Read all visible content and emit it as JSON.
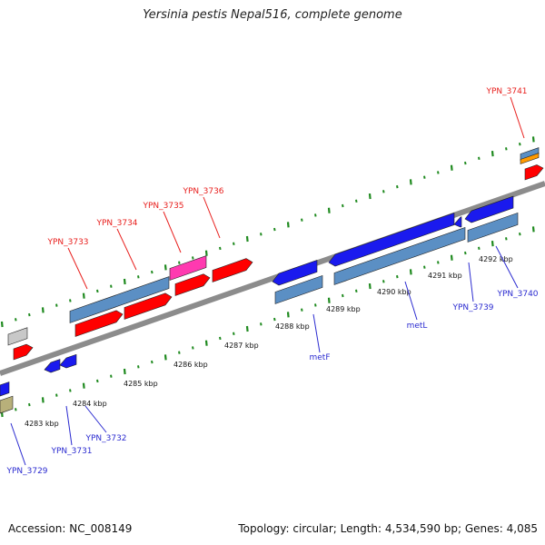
{
  "title": "Yersinia pestis Nepal516, complete genome",
  "footer": {
    "accession": "Accession: NC_008149",
    "topology": "Topology: circular; Length: 4,534,590 bp; Genes: 4,085"
  },
  "colors": {
    "backbone": "#8c8c8c",
    "tick": "#1f8a1f",
    "label_forward": "#e8201e",
    "label_reverse": "#2b2bd0",
    "cds_forward": "#ff0000",
    "cds_reverse": "#1a1aee",
    "gene_outline": "#5b8fc4",
    "ncrna": "#ff3ab0",
    "pseudo": "#c8c8c8",
    "trna": "#ff9a00",
    "other": "#b8b07a"
  },
  "scale": {
    "ticks": [
      "4283 kbp",
      "4284 kbp",
      "4285 kbp",
      "4286 kbp",
      "4287 kbp",
      "4288 kbp",
      "4289 kbp",
      "4290 kbp",
      "4291 kbp",
      "4292 kbp"
    ]
  },
  "forward_labels": [
    "YPN_3733",
    "YPN_3734",
    "YPN_3735",
    "YPN_3736",
    "YPN_3741"
  ],
  "reverse_labels": [
    "YPN_3729",
    "YPN_3731",
    "YPN_3732",
    "metF",
    "metL",
    "YPN_3739",
    "YPN_3740"
  ]
}
